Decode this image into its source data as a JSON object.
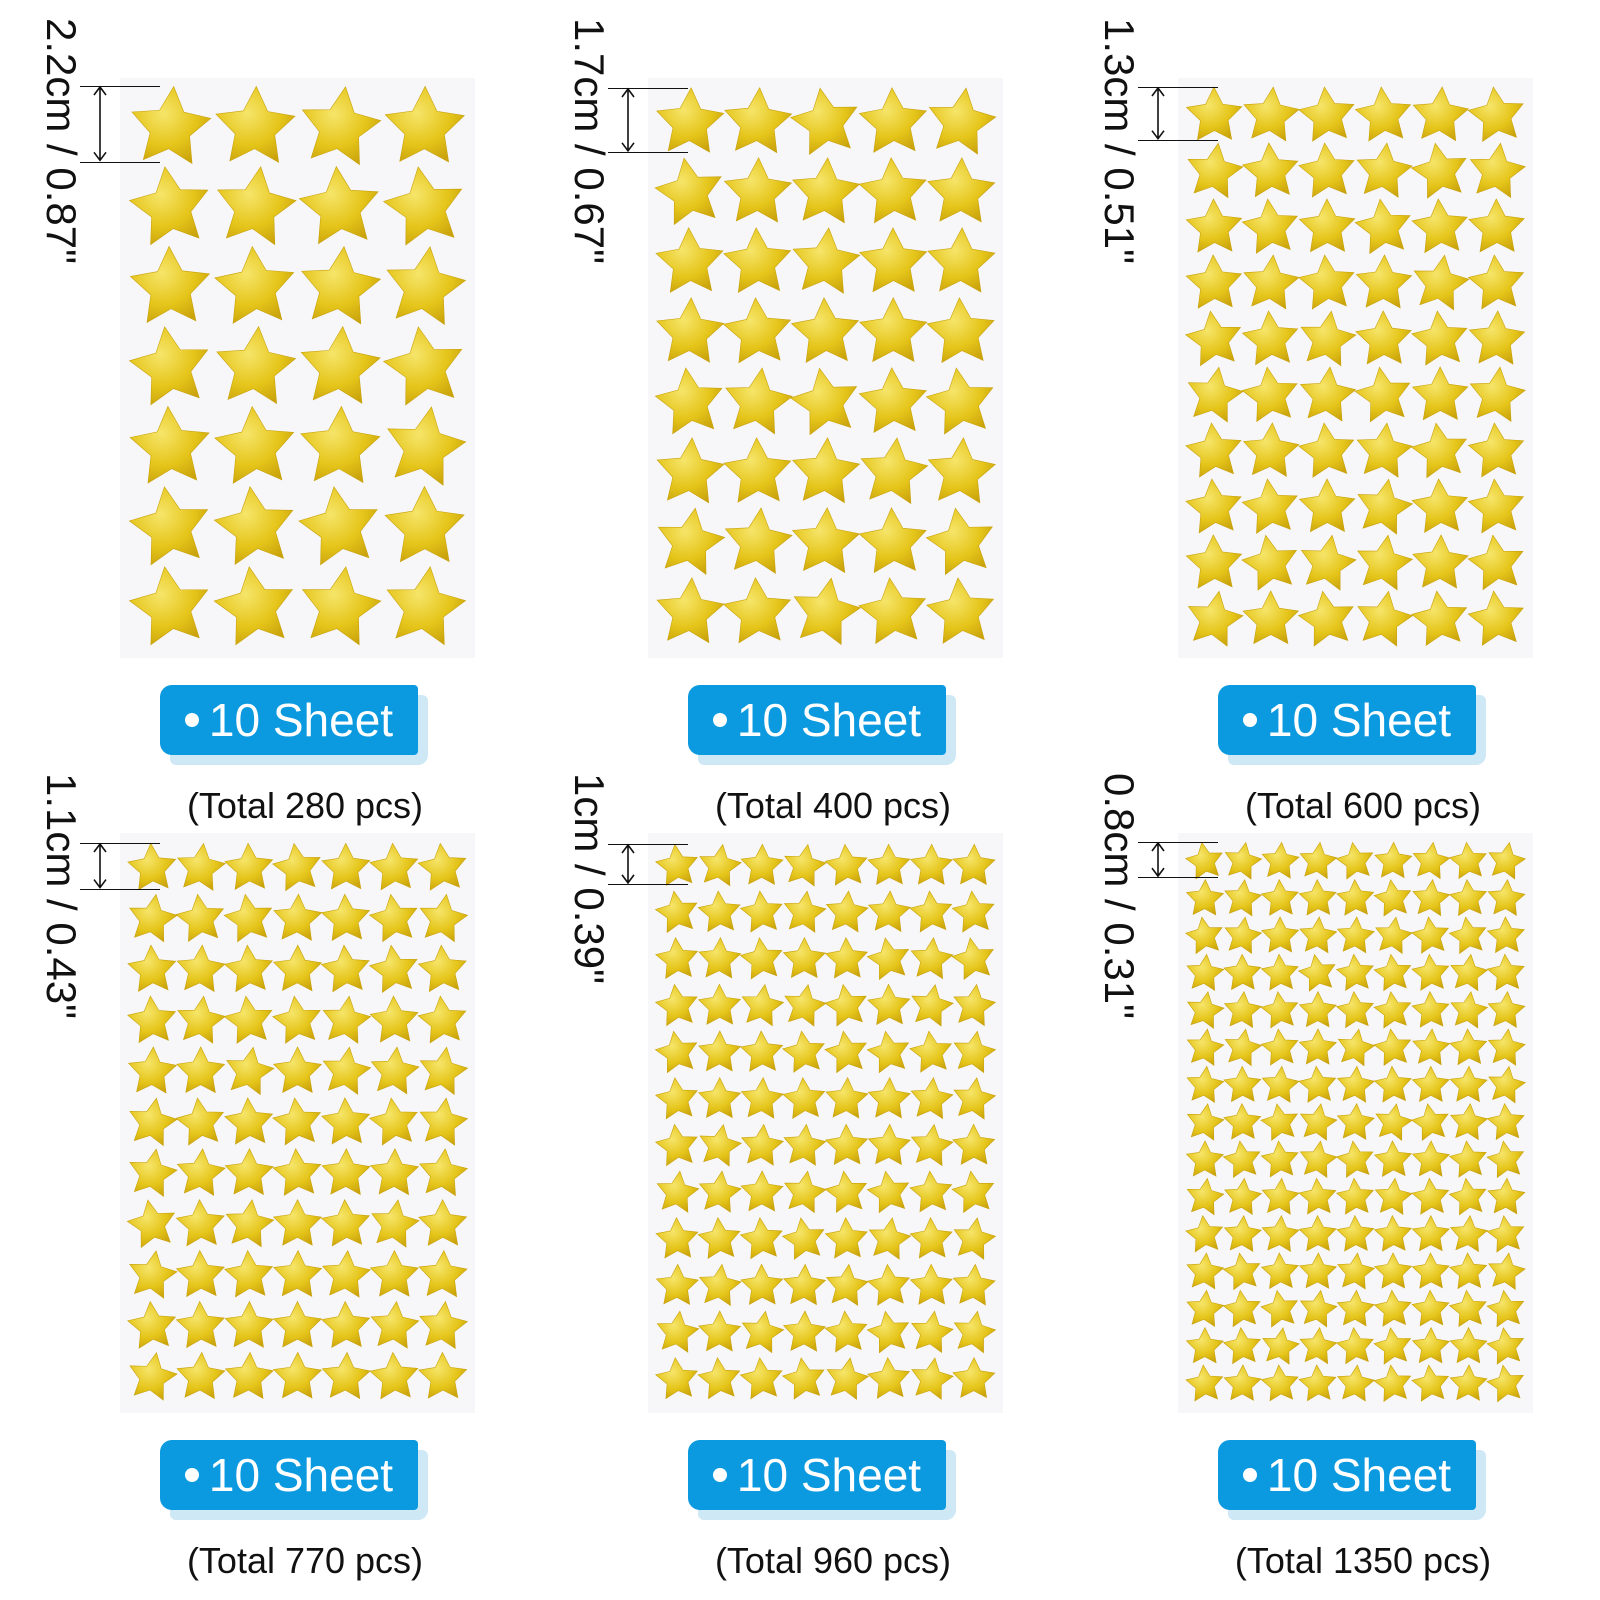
{
  "star_color": "#e5c51a",
  "star_highlight": "#f6e56a",
  "star_shade": "#c9a20c",
  "badge_color": "#0b9ae0",
  "items": [
    {
      "size_label": "2.2cm / 0.87\"",
      "badge_label": "10 Sheet",
      "total_label": "(Total 280 pcs)",
      "cols": 4,
      "rows": 7
    },
    {
      "size_label": "1.7cm / 0.67\"",
      "badge_label": "10 Sheet",
      "total_label": "(Total 400 pcs)",
      "cols": 5,
      "rows": 8
    },
    {
      "size_label": "1.3cm / 0.51\"",
      "badge_label": "10 Sheet",
      "total_label": "(Total 600 pcs)",
      "cols": 6,
      "rows": 10
    },
    {
      "size_label": "1.1cm / 0.43\"",
      "badge_label": "10 Sheet",
      "total_label": "(Total 770 pcs)",
      "cols": 7,
      "rows": 11
    },
    {
      "size_label": "1cm / 0.39\"",
      "badge_label": "10 Sheet",
      "total_label": "(Total 960 pcs)",
      "cols": 8,
      "rows": 12
    },
    {
      "size_label": "0.8cm / 0.31\"",
      "badge_label": "10 Sheet",
      "total_label": "(Total 1350 pcs)",
      "cols": 9,
      "rows": 15
    }
  ]
}
